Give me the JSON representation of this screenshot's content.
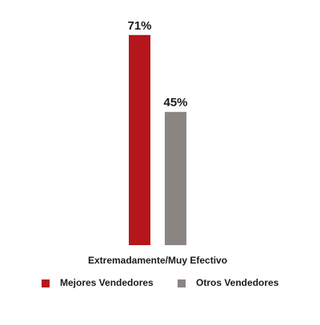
{
  "chart_data": {
    "type": "bar",
    "categories": [
      "Extremadamente/Muy Efectivo"
    ],
    "series": [
      {
        "name": "Mejores Vendedores",
        "color": "#b5161b",
        "values": [
          71
        ],
        "value_labels": [
          "71%"
        ]
      },
      {
        "name": "Otros Vendedores",
        "color": "#8a8582",
        "values": [
          45
        ],
        "value_labels": [
          "45%"
        ]
      }
    ],
    "ylim": [
      0,
      75
    ]
  }
}
